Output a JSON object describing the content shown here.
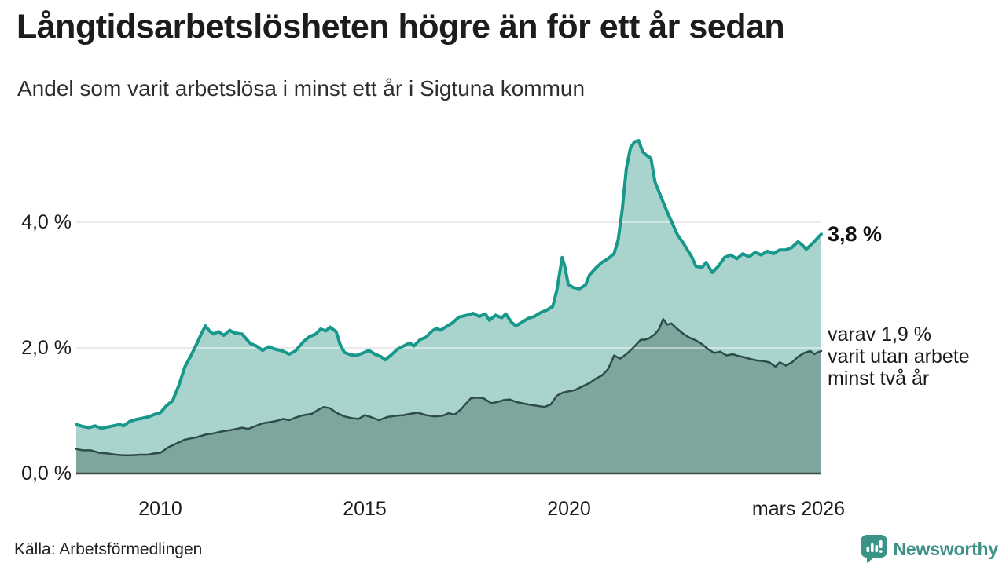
{
  "header": {
    "title": "Långtidsarbetslösheten högre än för ett år sedan",
    "subtitle": "Andel som varit arbetslösa i minst ett år i Sigtuna kommun"
  },
  "annotations": {
    "latest_value": "3,8 %",
    "secondary": {
      "lines": [
        "varav 1,9 %",
        "varit utan arbete",
        "minst två år"
      ]
    }
  },
  "footer": {
    "source": "Källa: Arbetsförmedlingen",
    "brand": "Newsworthy"
  },
  "colors": {
    "line_1yr": "#17988a",
    "fill_1yr": "#a8d4cd",
    "line_2yr": "#2f4d48",
    "fill_2yr": "#7ea69e",
    "axis": "#3c4946",
    "gridline": "#d9d9d9",
    "grid_overlay": "rgba(255,255,255,0.45)",
    "brand": "#3d9186",
    "text": "#1a1a1a"
  },
  "chart_data": {
    "type": "area",
    "title": "Långtidsarbetslösheten högre än för ett år sedan",
    "subtitle": "Andel som varit arbetslösa i minst ett år i Sigtuna kommun",
    "unit": "%",
    "xlim": [
      2007.94,
      2026.17
    ],
    "ylim": [
      0,
      5.55
    ],
    "grid_values": [
      2,
      4
    ],
    "y_ticks": [
      {
        "v": 4,
        "label": "4,0 %"
      },
      {
        "v": 2,
        "label": "2,0 %"
      },
      {
        "v": 0,
        "label": "0,0 %"
      }
    ],
    "x_ticks": [
      {
        "t": 2010,
        "label": "2010"
      },
      {
        "t": 2015,
        "label": "2015"
      },
      {
        "t": 2020,
        "label": "2020"
      },
      {
        "t": 2026.17,
        "label": "mars 2026"
      }
    ],
    "series": [
      {
        "name": "Andel arbetslösa minst ett år",
        "last_value": 3.8,
        "line_color": "#17988a",
        "fill_color": "#a8d4cd",
        "points": [
          [
            2007.94,
            0.78
          ],
          [
            2008.1,
            0.75
          ],
          [
            2008.25,
            0.73
          ],
          [
            2008.4,
            0.76
          ],
          [
            2008.55,
            0.72
          ],
          [
            2008.7,
            0.74
          ],
          [
            2008.85,
            0.76
          ],
          [
            2009.0,
            0.78
          ],
          [
            2009.1,
            0.76
          ],
          [
            2009.25,
            0.83
          ],
          [
            2009.4,
            0.86
          ],
          [
            2009.55,
            0.88
          ],
          [
            2009.7,
            0.9
          ],
          [
            2009.85,
            0.94
          ],
          [
            2010.0,
            0.97
          ],
          [
            2010.15,
            1.08
          ],
          [
            2010.3,
            1.16
          ],
          [
            2010.45,
            1.4
          ],
          [
            2010.6,
            1.7
          ],
          [
            2010.75,
            1.88
          ],
          [
            2010.9,
            2.08
          ],
          [
            2011.0,
            2.22
          ],
          [
            2011.1,
            2.35
          ],
          [
            2011.2,
            2.27
          ],
          [
            2011.3,
            2.22
          ],
          [
            2011.42,
            2.26
          ],
          [
            2011.55,
            2.2
          ],
          [
            2011.7,
            2.28
          ],
          [
            2011.8,
            2.24
          ],
          [
            2012.0,
            2.22
          ],
          [
            2012.2,
            2.07
          ],
          [
            2012.35,
            2.03
          ],
          [
            2012.5,
            1.96
          ],
          [
            2012.65,
            2.02
          ],
          [
            2012.8,
            1.98
          ],
          [
            2013.0,
            1.95
          ],
          [
            2013.15,
            1.9
          ],
          [
            2013.3,
            1.95
          ],
          [
            2013.5,
            2.1
          ],
          [
            2013.65,
            2.18
          ],
          [
            2013.8,
            2.22
          ],
          [
            2013.92,
            2.3
          ],
          [
            2014.05,
            2.27
          ],
          [
            2014.15,
            2.33
          ],
          [
            2014.3,
            2.26
          ],
          [
            2014.4,
            2.05
          ],
          [
            2014.5,
            1.93
          ],
          [
            2014.65,
            1.89
          ],
          [
            2014.8,
            1.88
          ],
          [
            2015.0,
            1.93
          ],
          [
            2015.1,
            1.96
          ],
          [
            2015.25,
            1.9
          ],
          [
            2015.4,
            1.86
          ],
          [
            2015.5,
            1.81
          ],
          [
            2015.65,
            1.89
          ],
          [
            2015.8,
            1.98
          ],
          [
            2015.95,
            2.03
          ],
          [
            2016.1,
            2.08
          ],
          [
            2016.2,
            2.03
          ],
          [
            2016.35,
            2.13
          ],
          [
            2016.5,
            2.17
          ],
          [
            2016.65,
            2.27
          ],
          [
            2016.75,
            2.31
          ],
          [
            2016.85,
            2.28
          ],
          [
            2017.0,
            2.34
          ],
          [
            2017.15,
            2.4
          ],
          [
            2017.3,
            2.49
          ],
          [
            2017.5,
            2.52
          ],
          [
            2017.65,
            2.55
          ],
          [
            2017.8,
            2.5
          ],
          [
            2017.95,
            2.54
          ],
          [
            2018.05,
            2.44
          ],
          [
            2018.2,
            2.52
          ],
          [
            2018.35,
            2.48
          ],
          [
            2018.45,
            2.54
          ],
          [
            2018.6,
            2.4
          ],
          [
            2018.7,
            2.35
          ],
          [
            2018.85,
            2.41
          ],
          [
            2019.0,
            2.47
          ],
          [
            2019.15,
            2.5
          ],
          [
            2019.3,
            2.56
          ],
          [
            2019.45,
            2.6
          ],
          [
            2019.6,
            2.66
          ],
          [
            2019.7,
            2.92
          ],
          [
            2019.83,
            3.44
          ],
          [
            2019.9,
            3.28
          ],
          [
            2019.98,
            3.01
          ],
          [
            2020.1,
            2.96
          ],
          [
            2020.25,
            2.94
          ],
          [
            2020.4,
            3.0
          ],
          [
            2020.5,
            3.16
          ],
          [
            2020.65,
            3.27
          ],
          [
            2020.8,
            3.36
          ],
          [
            2020.95,
            3.42
          ],
          [
            2021.1,
            3.5
          ],
          [
            2021.2,
            3.72
          ],
          [
            2021.3,
            4.2
          ],
          [
            2021.4,
            4.85
          ],
          [
            2021.5,
            5.18
          ],
          [
            2021.6,
            5.28
          ],
          [
            2021.7,
            5.3
          ],
          [
            2021.8,
            5.12
          ],
          [
            2021.9,
            5.06
          ],
          [
            2022.0,
            5.02
          ],
          [
            2022.1,
            4.64
          ],
          [
            2022.25,
            4.4
          ],
          [
            2022.4,
            4.16
          ],
          [
            2022.5,
            4.02
          ],
          [
            2022.65,
            3.8
          ],
          [
            2022.8,
            3.66
          ],
          [
            2023.0,
            3.45
          ],
          [
            2023.1,
            3.3
          ],
          [
            2023.25,
            3.28
          ],
          [
            2023.35,
            3.36
          ],
          [
            2023.5,
            3.2
          ],
          [
            2023.65,
            3.3
          ],
          [
            2023.8,
            3.44
          ],
          [
            2023.95,
            3.48
          ],
          [
            2024.1,
            3.42
          ],
          [
            2024.25,
            3.5
          ],
          [
            2024.4,
            3.45
          ],
          [
            2024.55,
            3.52
          ],
          [
            2024.7,
            3.48
          ],
          [
            2024.85,
            3.54
          ],
          [
            2025.0,
            3.5
          ],
          [
            2025.15,
            3.56
          ],
          [
            2025.3,
            3.56
          ],
          [
            2025.45,
            3.6
          ],
          [
            2025.6,
            3.69
          ],
          [
            2025.7,
            3.64
          ],
          [
            2025.8,
            3.57
          ],
          [
            2025.95,
            3.66
          ],
          [
            2026.05,
            3.73
          ],
          [
            2026.12,
            3.78
          ],
          [
            2026.17,
            3.81
          ]
        ]
      },
      {
        "name": "varav utan arbete minst två år",
        "last_value": 1.9,
        "line_color": "#2f4d48",
        "fill_color": "#7ea69e",
        "points": [
          [
            2007.94,
            0.39
          ],
          [
            2008.1,
            0.37
          ],
          [
            2008.3,
            0.37
          ],
          [
            2008.5,
            0.33
          ],
          [
            2008.7,
            0.32
          ],
          [
            2008.9,
            0.3
          ],
          [
            2009.1,
            0.29
          ],
          [
            2009.3,
            0.29
          ],
          [
            2009.5,
            0.3
          ],
          [
            2009.7,
            0.3
          ],
          [
            2009.85,
            0.32
          ],
          [
            2010.0,
            0.33
          ],
          [
            2010.2,
            0.42
          ],
          [
            2010.4,
            0.48
          ],
          [
            2010.6,
            0.54
          ],
          [
            2010.75,
            0.56
          ],
          [
            2010.9,
            0.58
          ],
          [
            2011.1,
            0.62
          ],
          [
            2011.3,
            0.64
          ],
          [
            2011.5,
            0.67
          ],
          [
            2011.7,
            0.69
          ],
          [
            2011.85,
            0.71
          ],
          [
            2012.0,
            0.73
          ],
          [
            2012.15,
            0.71
          ],
          [
            2012.3,
            0.75
          ],
          [
            2012.5,
            0.8
          ],
          [
            2012.7,
            0.82
          ],
          [
            2012.85,
            0.84
          ],
          [
            2013.0,
            0.87
          ],
          [
            2013.15,
            0.85
          ],
          [
            2013.3,
            0.89
          ],
          [
            2013.5,
            0.93
          ],
          [
            2013.7,
            0.95
          ],
          [
            2013.9,
            1.03
          ],
          [
            2014.0,
            1.06
          ],
          [
            2014.15,
            1.04
          ],
          [
            2014.3,
            0.97
          ],
          [
            2014.5,
            0.91
          ],
          [
            2014.7,
            0.88
          ],
          [
            2014.85,
            0.87
          ],
          [
            2015.0,
            0.93
          ],
          [
            2015.15,
            0.9
          ],
          [
            2015.35,
            0.85
          ],
          [
            2015.55,
            0.9
          ],
          [
            2015.75,
            0.92
          ],
          [
            2015.95,
            0.93
          ],
          [
            2016.1,
            0.95
          ],
          [
            2016.3,
            0.97
          ],
          [
            2016.5,
            0.93
          ],
          [
            2016.7,
            0.91
          ],
          [
            2016.9,
            0.92
          ],
          [
            2017.05,
            0.96
          ],
          [
            2017.2,
            0.94
          ],
          [
            2017.35,
            1.02
          ],
          [
            2017.5,
            1.13
          ],
          [
            2017.6,
            1.2
          ],
          [
            2017.75,
            1.21
          ],
          [
            2017.9,
            1.2
          ],
          [
            2018.1,
            1.12
          ],
          [
            2018.25,
            1.14
          ],
          [
            2018.4,
            1.17
          ],
          [
            2018.55,
            1.18
          ],
          [
            2018.7,
            1.14
          ],
          [
            2018.85,
            1.12
          ],
          [
            2019.0,
            1.1
          ],
          [
            2019.2,
            1.08
          ],
          [
            2019.4,
            1.06
          ],
          [
            2019.55,
            1.1
          ],
          [
            2019.7,
            1.24
          ],
          [
            2019.85,
            1.29
          ],
          [
            2020.0,
            1.31
          ],
          [
            2020.15,
            1.33
          ],
          [
            2020.3,
            1.38
          ],
          [
            2020.5,
            1.44
          ],
          [
            2020.65,
            1.51
          ],
          [
            2020.8,
            1.56
          ],
          [
            2020.95,
            1.66
          ],
          [
            2021.05,
            1.8
          ],
          [
            2021.1,
            1.88
          ],
          [
            2021.25,
            1.83
          ],
          [
            2021.4,
            1.9
          ],
          [
            2021.55,
            1.99
          ],
          [
            2021.65,
            2.06
          ],
          [
            2021.75,
            2.13
          ],
          [
            2021.85,
            2.13
          ],
          [
            2021.95,
            2.15
          ],
          [
            2022.1,
            2.22
          ],
          [
            2022.2,
            2.3
          ],
          [
            2022.3,
            2.46
          ],
          [
            2022.4,
            2.37
          ],
          [
            2022.5,
            2.39
          ],
          [
            2022.65,
            2.3
          ],
          [
            2022.8,
            2.22
          ],
          [
            2022.95,
            2.16
          ],
          [
            2023.1,
            2.12
          ],
          [
            2023.25,
            2.06
          ],
          [
            2023.4,
            1.98
          ],
          [
            2023.55,
            1.92
          ],
          [
            2023.7,
            1.94
          ],
          [
            2023.85,
            1.88
          ],
          [
            2024.0,
            1.9
          ],
          [
            2024.15,
            1.87
          ],
          [
            2024.3,
            1.85
          ],
          [
            2024.45,
            1.82
          ],
          [
            2024.6,
            1.8
          ],
          [
            2024.75,
            1.79
          ],
          [
            2024.9,
            1.77
          ],
          [
            2025.05,
            1.7
          ],
          [
            2025.15,
            1.77
          ],
          [
            2025.3,
            1.72
          ],
          [
            2025.45,
            1.77
          ],
          [
            2025.6,
            1.86
          ],
          [
            2025.75,
            1.92
          ],
          [
            2025.9,
            1.95
          ],
          [
            2026.0,
            1.9
          ],
          [
            2026.08,
            1.93
          ],
          [
            2026.17,
            1.95
          ]
        ]
      }
    ]
  }
}
